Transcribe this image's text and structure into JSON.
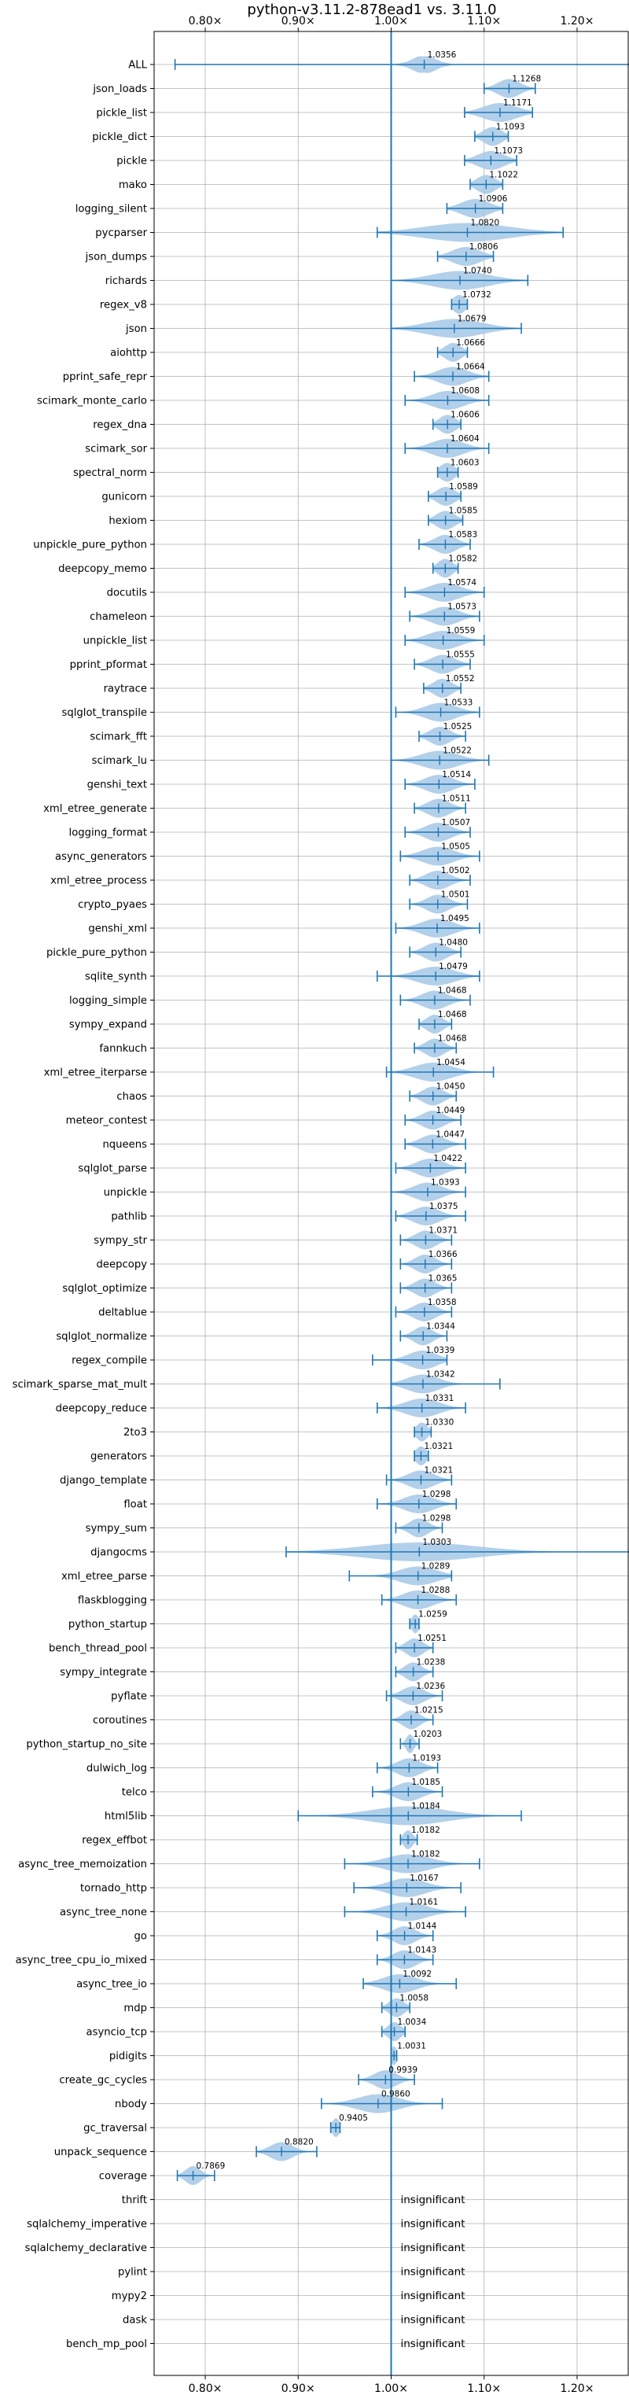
{
  "chart_data": {
    "type": "violin",
    "title": "python-v3.11.2-878ead1 vs. 3.11.0",
    "xlim": [
      0.745,
      1.255
    ],
    "x_ticks": [
      0.8,
      0.9,
      1.0,
      1.1,
      1.2
    ],
    "x_tick_labels": [
      "0.80×",
      "0.90×",
      "1.00×",
      "1.10×",
      "1.20×"
    ],
    "reference_line": 1.0,
    "grid": true,
    "color": "#1f77b4",
    "violin_fill": "#a6c8e6",
    "insignificant_label": "insignificant",
    "benchmarks": [
      {
        "name": "ALL",
        "mean": 1.0356,
        "lo": 0.7675,
        "hi": 1.266,
        "spread": 0.012,
        "label": "1.0356"
      },
      {
        "name": "json_loads",
        "mean": 1.1268,
        "lo": 1.1,
        "hi": 1.155,
        "spread": 0.012,
        "label": "1.1268"
      },
      {
        "name": "pickle_list",
        "mean": 1.1171,
        "lo": 1.079,
        "hi": 1.152,
        "spread": 0.018,
        "label": "1.1171"
      },
      {
        "name": "pickle_dict",
        "mean": 1.1093,
        "lo": 1.09,
        "hi": 1.126,
        "spread": 0.01,
        "label": "1.1093"
      },
      {
        "name": "pickle",
        "mean": 1.1073,
        "lo": 1.079,
        "hi": 1.135,
        "spread": 0.014,
        "label": "1.1073"
      },
      {
        "name": "mako",
        "mean": 1.1022,
        "lo": 1.085,
        "hi": 1.12,
        "spread": 0.01,
        "label": "1.1022"
      },
      {
        "name": "logging_silent",
        "mean": 1.0906,
        "lo": 1.06,
        "hi": 1.12,
        "spread": 0.015,
        "label": "1.0906"
      },
      {
        "name": "pycparser",
        "mean": 1.082,
        "lo": 0.985,
        "hi": 1.185,
        "spread": 0.045,
        "label": "1.0820"
      },
      {
        "name": "json_dumps",
        "mean": 1.0806,
        "lo": 1.05,
        "hi": 1.11,
        "spread": 0.015,
        "label": "1.0806"
      },
      {
        "name": "richards",
        "mean": 1.074,
        "lo": 1.0,
        "hi": 1.147,
        "spread": 0.03,
        "label": "1.0740"
      },
      {
        "name": "regex_v8",
        "mean": 1.0732,
        "lo": 1.065,
        "hi": 1.082,
        "spread": 0.007,
        "label": "1.0732"
      },
      {
        "name": "json",
        "mean": 1.0679,
        "lo": 1.0,
        "hi": 1.14,
        "spread": 0.03,
        "label": "1.0679"
      },
      {
        "name": "aiohttp",
        "mean": 1.0666,
        "lo": 1.05,
        "hi": 1.082,
        "spread": 0.009,
        "label": "1.0666"
      },
      {
        "name": "pprint_safe_repr",
        "mean": 1.0664,
        "lo": 1.025,
        "hi": 1.105,
        "spread": 0.016,
        "label": "1.0664"
      },
      {
        "name": "scimark_monte_carlo",
        "mean": 1.0608,
        "lo": 1.015,
        "hi": 1.105,
        "spread": 0.017,
        "label": "1.0608"
      },
      {
        "name": "regex_dna",
        "mean": 1.0606,
        "lo": 1.045,
        "hi": 1.075,
        "spread": 0.009,
        "label": "1.0606"
      },
      {
        "name": "scimark_sor",
        "mean": 1.0604,
        "lo": 1.015,
        "hi": 1.105,
        "spread": 0.017,
        "label": "1.0604"
      },
      {
        "name": "spectral_norm",
        "mean": 1.0603,
        "lo": 1.05,
        "hi": 1.072,
        "spread": 0.008,
        "label": "1.0603"
      },
      {
        "name": "gunicorn",
        "mean": 1.0589,
        "lo": 1.04,
        "hi": 1.075,
        "spread": 0.01,
        "label": "1.0589"
      },
      {
        "name": "hexiom",
        "mean": 1.0585,
        "lo": 1.04,
        "hi": 1.077,
        "spread": 0.01,
        "label": "1.0585"
      },
      {
        "name": "unpickle_pure_python",
        "mean": 1.0583,
        "lo": 1.03,
        "hi": 1.085,
        "spread": 0.012,
        "label": "1.0583"
      },
      {
        "name": "deepcopy_memo",
        "mean": 1.0582,
        "lo": 1.045,
        "hi": 1.072,
        "spread": 0.008,
        "label": "1.0582"
      },
      {
        "name": "docutils",
        "mean": 1.0574,
        "lo": 1.015,
        "hi": 1.1,
        "spread": 0.017,
        "label": "1.0574"
      },
      {
        "name": "chameleon",
        "mean": 1.0573,
        "lo": 1.02,
        "hi": 1.095,
        "spread": 0.015,
        "label": "1.0573"
      },
      {
        "name": "unpickle_list",
        "mean": 1.0559,
        "lo": 1.015,
        "hi": 1.1,
        "spread": 0.017,
        "label": "1.0559"
      },
      {
        "name": "pprint_pformat",
        "mean": 1.0555,
        "lo": 1.025,
        "hi": 1.085,
        "spread": 0.013,
        "label": "1.0555"
      },
      {
        "name": "raytrace",
        "mean": 1.0552,
        "lo": 1.035,
        "hi": 1.075,
        "spread": 0.01,
        "label": "1.0552"
      },
      {
        "name": "sqlglot_transpile",
        "mean": 1.0533,
        "lo": 1.005,
        "hi": 1.095,
        "spread": 0.017,
        "label": "1.0533"
      },
      {
        "name": "scimark_fft",
        "mean": 1.0525,
        "lo": 1.03,
        "hi": 1.08,
        "spread": 0.011,
        "label": "1.0525"
      },
      {
        "name": "scimark_lu",
        "mean": 1.0522,
        "lo": 1.0,
        "hi": 1.105,
        "spread": 0.02,
        "label": "1.0522"
      },
      {
        "name": "genshi_text",
        "mean": 1.0514,
        "lo": 1.015,
        "hi": 1.09,
        "spread": 0.015,
        "label": "1.0514"
      },
      {
        "name": "xml_etree_generate",
        "mean": 1.0511,
        "lo": 1.025,
        "hi": 1.08,
        "spread": 0.012,
        "label": "1.0511"
      },
      {
        "name": "logging_format",
        "mean": 1.0507,
        "lo": 1.015,
        "hi": 1.085,
        "spread": 0.014,
        "label": "1.0507"
      },
      {
        "name": "async_generators",
        "mean": 1.0505,
        "lo": 1.01,
        "hi": 1.095,
        "spread": 0.017,
        "label": "1.0505"
      },
      {
        "name": "xml_etree_process",
        "mean": 1.0502,
        "lo": 1.02,
        "hi": 1.085,
        "spread": 0.013,
        "label": "1.0502"
      },
      {
        "name": "crypto_pyaes",
        "mean": 1.0501,
        "lo": 1.02,
        "hi": 1.082,
        "spread": 0.012,
        "label": "1.0501"
      },
      {
        "name": "genshi_xml",
        "mean": 1.0495,
        "lo": 1.005,
        "hi": 1.095,
        "spread": 0.017,
        "label": "1.0495"
      },
      {
        "name": "pickle_pure_python",
        "mean": 1.048,
        "lo": 1.02,
        "hi": 1.075,
        "spread": 0.012,
        "label": "1.0480"
      },
      {
        "name": "sqlite_synth",
        "mean": 1.0479,
        "lo": 0.985,
        "hi": 1.095,
        "spread": 0.02,
        "label": "1.0479"
      },
      {
        "name": "logging_simple",
        "mean": 1.0468,
        "lo": 1.01,
        "hi": 1.085,
        "spread": 0.014,
        "label": "1.0468"
      },
      {
        "name": "sympy_expand",
        "mean": 1.0468,
        "lo": 1.03,
        "hi": 1.065,
        "spread": 0.009,
        "label": "1.0468"
      },
      {
        "name": "fannkuch",
        "mean": 1.0468,
        "lo": 1.025,
        "hi": 1.07,
        "spread": 0.01,
        "label": "1.0468"
      },
      {
        "name": "xml_etree_iterparse",
        "mean": 1.0454,
        "lo": 0.995,
        "hi": 1.11,
        "spread": 0.02,
        "label": "1.0454"
      },
      {
        "name": "chaos",
        "mean": 1.045,
        "lo": 1.02,
        "hi": 1.07,
        "spread": 0.011,
        "label": "1.0450"
      },
      {
        "name": "meteor_contest",
        "mean": 1.0449,
        "lo": 1.015,
        "hi": 1.075,
        "spread": 0.012,
        "label": "1.0449"
      },
      {
        "name": "nqueens",
        "mean": 1.0447,
        "lo": 1.015,
        "hi": 1.08,
        "spread": 0.013,
        "label": "1.0447"
      },
      {
        "name": "sqlglot_parse",
        "mean": 1.0422,
        "lo": 1.005,
        "hi": 1.08,
        "spread": 0.015,
        "label": "1.0422"
      },
      {
        "name": "unpickle",
        "mean": 1.0393,
        "lo": 1.0,
        "hi": 1.08,
        "spread": 0.015,
        "label": "1.0393"
      },
      {
        "name": "pathlib",
        "mean": 1.0375,
        "lo": 1.005,
        "hi": 1.08,
        "spread": 0.014,
        "label": "1.0375"
      },
      {
        "name": "sympy_str",
        "mean": 1.0371,
        "lo": 1.01,
        "hi": 1.065,
        "spread": 0.011,
        "label": "1.0371"
      },
      {
        "name": "deepcopy",
        "mean": 1.0366,
        "lo": 1.01,
        "hi": 1.065,
        "spread": 0.011,
        "label": "1.0366"
      },
      {
        "name": "sqlglot_optimize",
        "mean": 1.0365,
        "lo": 1.01,
        "hi": 1.065,
        "spread": 0.011,
        "label": "1.0365"
      },
      {
        "name": "deltablue",
        "mean": 1.0358,
        "lo": 1.005,
        "hi": 1.065,
        "spread": 0.012,
        "label": "1.0358"
      },
      {
        "name": "sqlglot_normalize",
        "mean": 1.0344,
        "lo": 1.01,
        "hi": 1.06,
        "spread": 0.01,
        "label": "1.0344"
      },
      {
        "name": "regex_compile",
        "mean": 1.0339,
        "lo": 0.98,
        "hi": 1.06,
        "spread": 0.015,
        "label": "1.0339"
      },
      {
        "name": "scimark_sparse_mat_mult",
        "mean": 1.0342,
        "lo": 1.0,
        "hi": 1.117,
        "spread": 0.017,
        "label": "1.0342"
      },
      {
        "name": "deepcopy_reduce",
        "mean": 1.0331,
        "lo": 0.985,
        "hi": 1.08,
        "spread": 0.018,
        "label": "1.0331"
      },
      {
        "name": "2to3",
        "mean": 1.033,
        "lo": 1.025,
        "hi": 1.043,
        "spread": 0.006,
        "label": "1.0330"
      },
      {
        "name": "generators",
        "mean": 1.0321,
        "lo": 1.025,
        "hi": 1.04,
        "spread": 0.006,
        "label": "1.0321"
      },
      {
        "name": "django_template",
        "mean": 1.0321,
        "lo": 0.995,
        "hi": 1.065,
        "spread": 0.014,
        "label": "1.0321"
      },
      {
        "name": "float",
        "mean": 1.0298,
        "lo": 0.985,
        "hi": 1.07,
        "spread": 0.016,
        "label": "1.0298"
      },
      {
        "name": "sympy_sum",
        "mean": 1.0298,
        "lo": 1.005,
        "hi": 1.055,
        "spread": 0.01,
        "label": "1.0298"
      },
      {
        "name": "djangocms",
        "mean": 1.0303,
        "lo": 0.887,
        "hi": 1.267,
        "spread": 0.06,
        "label": "1.0303"
      },
      {
        "name": "xml_etree_parse",
        "mean": 1.0289,
        "lo": 0.955,
        "hi": 1.065,
        "spread": 0.02,
        "label": "1.0289"
      },
      {
        "name": "flaskblogging",
        "mean": 1.0288,
        "lo": 0.99,
        "hi": 1.07,
        "spread": 0.016,
        "label": "1.0288"
      },
      {
        "name": "python_startup",
        "mean": 1.0259,
        "lo": 1.02,
        "hi": 1.03,
        "spread": 0.004,
        "label": "1.0259"
      },
      {
        "name": "bench_thread_pool",
        "mean": 1.0251,
        "lo": 1.005,
        "hi": 1.045,
        "spread": 0.009,
        "label": "1.0251"
      },
      {
        "name": "sympy_integrate",
        "mean": 1.0238,
        "lo": 1.005,
        "hi": 1.045,
        "spread": 0.009,
        "label": "1.0238"
      },
      {
        "name": "pyflate",
        "mean": 1.0236,
        "lo": 0.995,
        "hi": 1.055,
        "spread": 0.012,
        "label": "1.0236"
      },
      {
        "name": "coroutines",
        "mean": 1.0215,
        "lo": 1.0,
        "hi": 1.045,
        "spread": 0.009,
        "label": "1.0215"
      },
      {
        "name": "python_startup_no_site",
        "mean": 1.0203,
        "lo": 1.01,
        "hi": 1.03,
        "spread": 0.004,
        "label": "1.0203"
      },
      {
        "name": "dulwich_log",
        "mean": 1.0193,
        "lo": 0.985,
        "hi": 1.05,
        "spread": 0.013,
        "label": "1.0193"
      },
      {
        "name": "telco",
        "mean": 1.0185,
        "lo": 0.98,
        "hi": 1.055,
        "spread": 0.014,
        "label": "1.0185"
      },
      {
        "name": "html5lib",
        "mean": 1.0184,
        "lo": 0.9,
        "hi": 1.14,
        "spread": 0.04,
        "label": "1.0184"
      },
      {
        "name": "regex_effbot",
        "mean": 1.0182,
        "lo": 1.01,
        "hi": 1.028,
        "spread": 0.005,
        "label": "1.0182"
      },
      {
        "name": "async_tree_memoization",
        "mean": 1.0182,
        "lo": 0.95,
        "hi": 1.095,
        "spread": 0.024,
        "label": "1.0182"
      },
      {
        "name": "tornado_http",
        "mean": 1.0167,
        "lo": 0.96,
        "hi": 1.075,
        "spread": 0.02,
        "label": "1.0167"
      },
      {
        "name": "async_tree_none",
        "mean": 1.0161,
        "lo": 0.95,
        "hi": 1.08,
        "spread": 0.022,
        "label": "1.0161"
      },
      {
        "name": "go",
        "mean": 1.0144,
        "lo": 0.985,
        "hi": 1.045,
        "spread": 0.012,
        "label": "1.0144"
      },
      {
        "name": "async_tree_cpu_io_mixed",
        "mean": 1.0143,
        "lo": 0.985,
        "hi": 1.045,
        "spread": 0.012,
        "label": "1.0143"
      },
      {
        "name": "async_tree_io",
        "mean": 1.0092,
        "lo": 0.97,
        "hi": 1.07,
        "spread": 0.018,
        "label": "1.0092"
      },
      {
        "name": "mdp",
        "mean": 1.0058,
        "lo": 0.99,
        "hi": 1.02,
        "spread": 0.008,
        "label": "1.0058"
      },
      {
        "name": "asyncio_tcp",
        "mean": 1.0034,
        "lo": 0.99,
        "hi": 1.015,
        "spread": 0.007,
        "label": "1.0034"
      },
      {
        "name": "pidigits",
        "mean": 1.0031,
        "lo": 1.0,
        "hi": 1.006,
        "spread": 0.003,
        "label": "1.0031"
      },
      {
        "name": "create_gc_cycles",
        "mean": 0.9939,
        "lo": 0.965,
        "hi": 1.025,
        "spread": 0.012,
        "label": "0.9939"
      },
      {
        "name": "nbody",
        "mean": 0.986,
        "lo": 0.925,
        "hi": 1.055,
        "spread": 0.022,
        "label": "0.9860"
      },
      {
        "name": "gc_traversal",
        "mean": 0.9405,
        "lo": 0.935,
        "hi": 0.945,
        "spread": 0.004,
        "label": "0.9405"
      },
      {
        "name": "unpack_sequence",
        "mean": 0.882,
        "lo": 0.855,
        "hi": 0.92,
        "spread": 0.012,
        "label": "0.8820"
      },
      {
        "name": "coverage",
        "mean": 0.7869,
        "lo": 0.77,
        "hi": 0.81,
        "spread": 0.008,
        "label": "0.7869"
      },
      {
        "name": "thrift",
        "insignificant": true
      },
      {
        "name": "sqlalchemy_imperative",
        "insignificant": true
      },
      {
        "name": "sqlalchemy_declarative",
        "insignificant": true
      },
      {
        "name": "pylint",
        "insignificant": true
      },
      {
        "name": "mypy2",
        "insignificant": true
      },
      {
        "name": "dask",
        "insignificant": true
      },
      {
        "name": "bench_mp_pool",
        "insignificant": true
      }
    ]
  }
}
